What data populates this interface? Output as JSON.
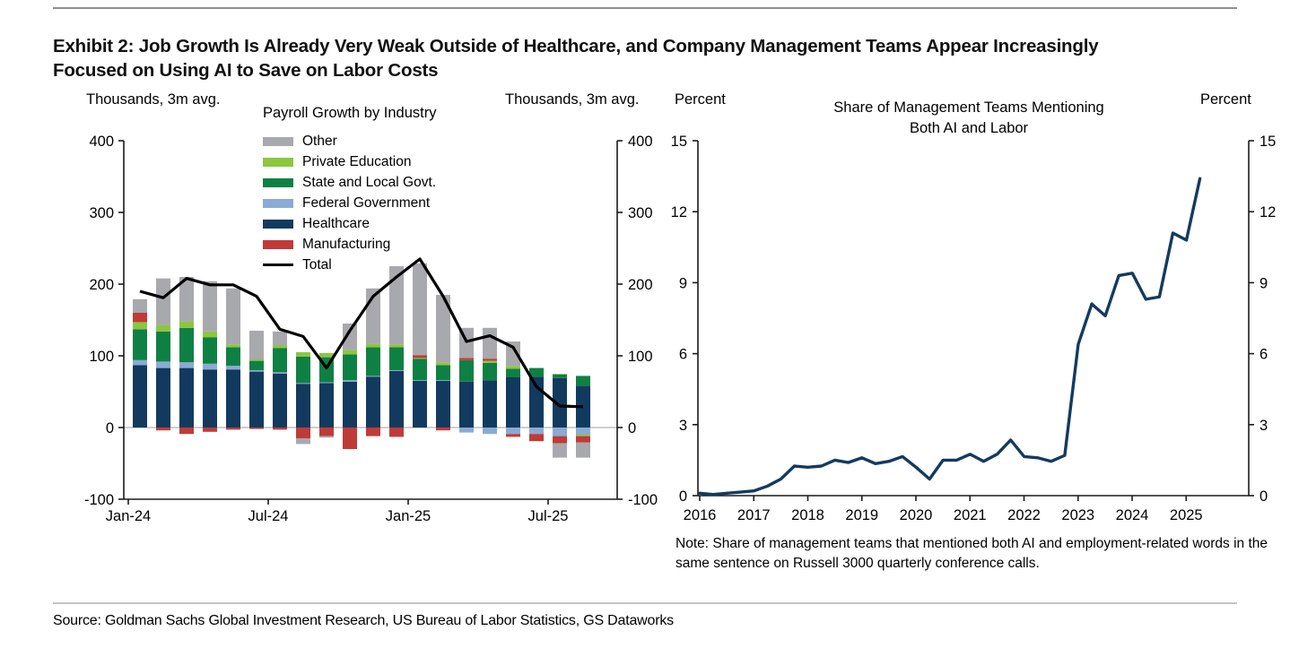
{
  "header": {
    "title": "Exhibit 2: Job Growth Is Already Very Weak Outside of Healthcare, and Company Management Teams Appear Increasingly Focused on Using AI to Save on Labor Costs"
  },
  "footer": {
    "source": "Source: Goldman Sachs Global Investment Research, US Bureau of Labor Statistics, GS Dataworks"
  },
  "chart_data": [
    {
      "type": "bar",
      "stacked": true,
      "title": "Payroll Growth by Industry",
      "unit_left": "Thousands, 3m avg.",
      "unit_right": "Thousands, 3m avg.",
      "ylim": [
        -100,
        400
      ],
      "yticks": [
        400,
        300,
        200,
        100,
        0,
        -100
      ],
      "xtick_labels": [
        "Jan-24",
        "Jul-24",
        "Jan-25",
        "Jul-25"
      ],
      "xtick_month_index": [
        0,
        6,
        12,
        18
      ],
      "categories": [
        "Jan-24",
        "Feb-24",
        "Mar-24",
        "Apr-24",
        "May-24",
        "Jun-24",
        "Jul-24",
        "Aug-24",
        "Sep-24",
        "Oct-24",
        "Nov-24",
        "Dec-24",
        "Jan-25",
        "Feb-25",
        "Mar-25",
        "Apr-25",
        "May-25",
        "Jun-25",
        "Jul-25",
        "Aug-25"
      ],
      "series": [
        {
          "name": "Healthcare",
          "color": "#123a5f",
          "values": [
            87,
            83,
            83,
            81,
            81,
            78,
            75,
            61,
            62,
            64,
            71,
            79,
            65,
            65,
            64,
            66,
            70,
            71,
            69,
            58
          ]
        },
        {
          "name": "Federal Government",
          "color": "#8aabd3",
          "values": [
            7,
            9,
            8,
            8,
            5,
            2,
            2,
            1,
            1,
            2,
            1,
            1,
            1,
            1,
            -7,
            -9,
            -9,
            -9,
            -12,
            -10
          ]
        },
        {
          "name": "State and Local Govt.",
          "color": "#0f8043",
          "values": [
            43,
            42,
            48,
            37,
            26,
            13,
            34,
            37,
            35,
            36,
            40,
            32,
            30,
            21,
            30,
            24,
            12,
            12,
            5,
            14
          ]
        },
        {
          "name": "Private Education",
          "color": "#8dc63f",
          "values": [
            10,
            9,
            9,
            8,
            4,
            2,
            4,
            6,
            6,
            6,
            5,
            4,
            1,
            4,
            0,
            3,
            4,
            0,
            1,
            -2
          ]
        },
        {
          "name": "Manufacturing",
          "color": "#bf3b38",
          "values": [
            13,
            -4,
            -9,
            -6,
            -3,
            -2,
            -3,
            -15,
            -12,
            -30,
            -12,
            -13,
            4,
            -4,
            3,
            3,
            -4,
            -10,
            -10,
            -9
          ]
        },
        {
          "name": "Other",
          "color": "#a8a9ad",
          "values": [
            19,
            65,
            62,
            70,
            78,
            40,
            19,
            -8,
            -2,
            37,
            77,
            109,
            128,
            94,
            42,
            43,
            34,
            0,
            -20,
            -21
          ]
        }
      ],
      "line_series": {
        "name": "Total",
        "color": "#000000",
        "values": [
          190,
          181,
          208,
          199,
          199,
          183,
          137,
          127,
          83,
          135,
          183,
          210,
          235,
          183,
          120,
          128,
          112,
          57,
          30,
          29
        ]
      },
      "legend": {
        "items": [
          "Other",
          "Private Education",
          "State and Local Govt.",
          "Federal Government",
          "Healthcare",
          "Manufacturing",
          "Total"
        ]
      }
    },
    {
      "type": "line",
      "title_lines": [
        "Share of Management Teams Mentioning",
        "Both AI and Labor"
      ],
      "unit_left": "Percent",
      "unit_right": "Percent",
      "ylim": [
        0,
        15
      ],
      "yticks": [
        15,
        12,
        9,
        6,
        3,
        0
      ],
      "xticks": [
        "2016",
        "2017",
        "2018",
        "2019",
        "2020",
        "2021",
        "2022",
        "2023",
        "2024",
        "2025"
      ],
      "frequency": "quarterly",
      "start": "2016Q1",
      "end": "2025Q2",
      "color": "#143a61",
      "values": [
        0.1,
        0.05,
        0.1,
        0.15,
        0.2,
        0.4,
        0.7,
        1.25,
        1.2,
        1.25,
        1.5,
        1.4,
        1.6,
        1.35,
        1.45,
        1.65,
        1.2,
        0.7,
        1.5,
        1.5,
        1.75,
        1.45,
        1.75,
        2.35,
        1.65,
        1.6,
        1.45,
        1.7,
        6.4,
        8.1,
        7.6,
        9.3,
        9.4,
        8.3,
        8.4,
        11.1,
        10.8,
        13.4
      ],
      "note": "Note: Share of management teams that mentioned both AI and employment-related words in the same sentence on Russell 3000 quarterly conference calls."
    }
  ]
}
